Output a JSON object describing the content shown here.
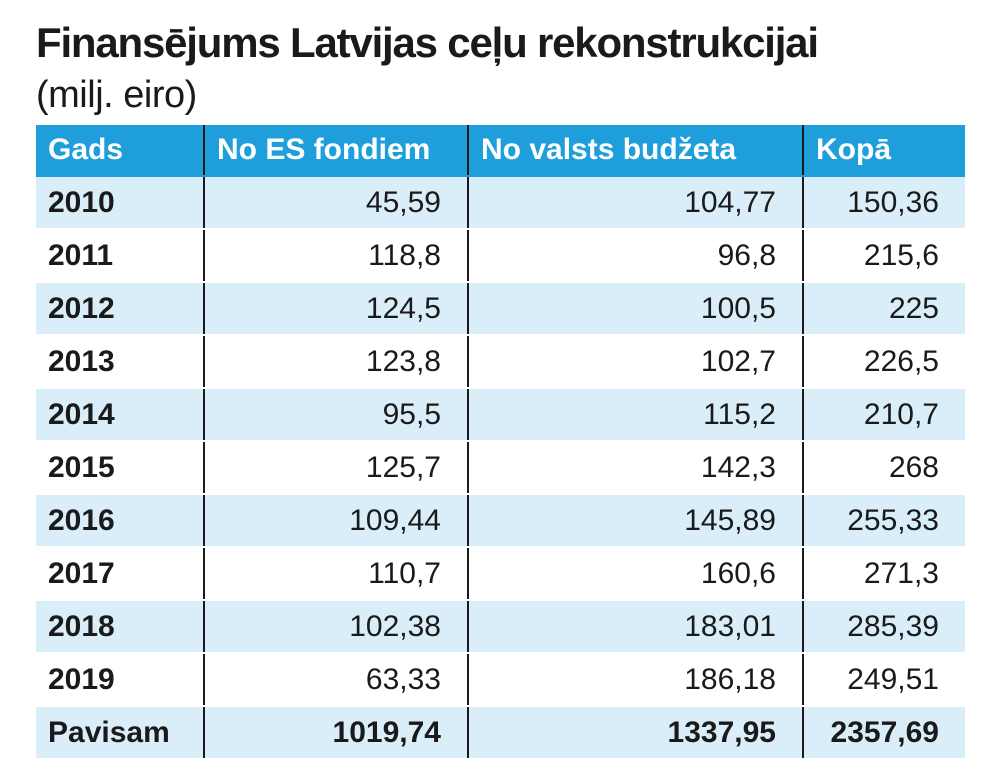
{
  "chart_data": {
    "type": "table",
    "title": "Finansējums Latvijas ceļu rekonstrukcijai",
    "subtitle": "(milj. eiro)",
    "columns": [
      "Gads",
      "No ES fondiem",
      "No valsts budžeta",
      "Kopā"
    ],
    "rows": [
      [
        "2010",
        "45,59",
        "104,77",
        "150,36"
      ],
      [
        "2011",
        "118,8",
        "96,8",
        "215,6"
      ],
      [
        "2012",
        "124,5",
        "100,5",
        "225"
      ],
      [
        "2013",
        "123,8",
        "102,7",
        "226,5"
      ],
      [
        "2014",
        "95,5",
        "115,2",
        "210,7"
      ],
      [
        "2015",
        "125,7",
        "142,3",
        "268"
      ],
      [
        "2016",
        "109,44",
        "145,89",
        "255,33"
      ],
      [
        "2017",
        "110,7",
        "160,6",
        "271,3"
      ],
      [
        "2018",
        "102,38",
        "183,01",
        "285,39"
      ],
      [
        "2019",
        "63,33",
        "186,18",
        "249,51"
      ]
    ],
    "total": [
      "Pavisam",
      "1019,74",
      "1337,95",
      "2357,69"
    ],
    "colors": {
      "header_bg": "#1e9fdc",
      "header_text": "#ffffff",
      "stripe": "#d9eef9"
    }
  }
}
